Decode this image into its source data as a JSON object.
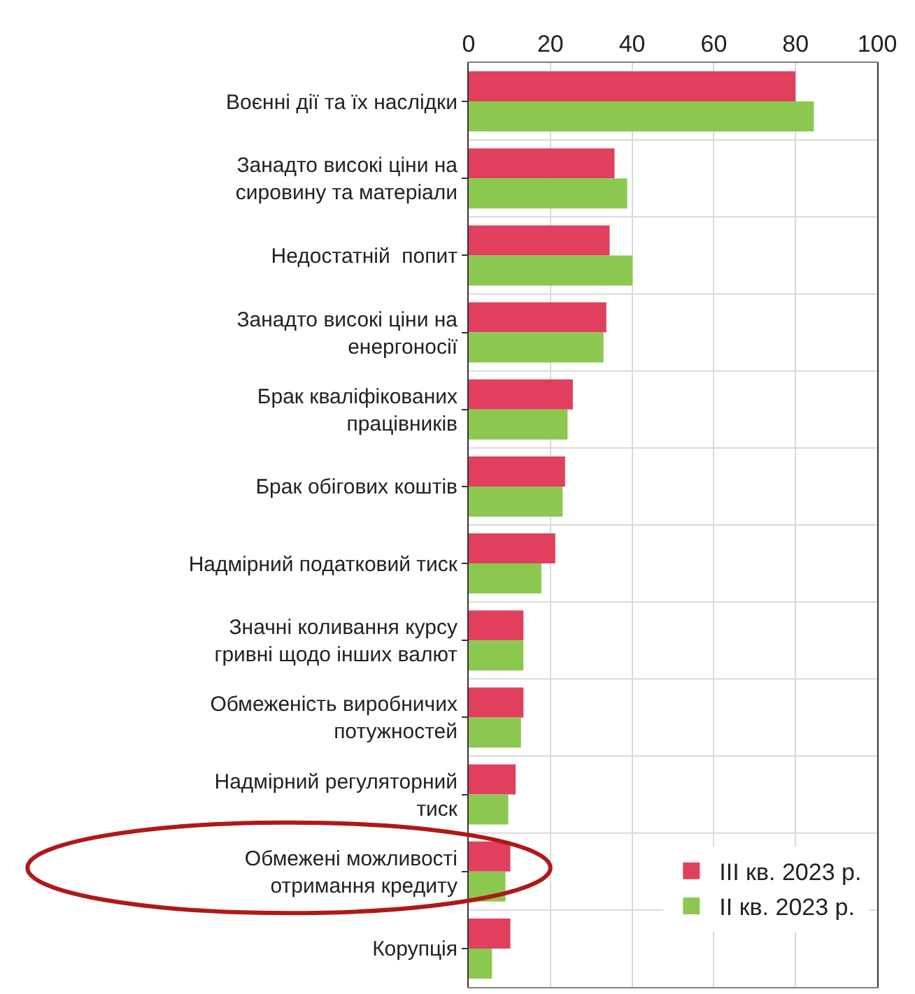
{
  "chart_data": {
    "type": "bar",
    "orientation": "horizontal",
    "categories": [
      "Воєнні дії та їх наслідки",
      "Занадто високі ціни на\nсировину та матеріали",
      "Недостатній  попит",
      "Занадто високі ціни на\nенергоносії",
      "Брак кваліфікованих\nпрацівників",
      "Брак обігових коштів",
      "Надмірний податковий тиск",
      "Значні коливання курсу\nгривні щодо інших валют",
      "Обмеженість виробничих\nпотужностей",
      "Надмірний регуляторний\nтиск",
      "Обмежені можливості\nотримання кредиту",
      "Корупція"
    ],
    "series": [
      {
        "name": "III кв. 2023 р.",
        "color": "#e0405e",
        "values": [
          80,
          35.7,
          34.5,
          33.7,
          25.5,
          23.6,
          21.2,
          13.4,
          13.4,
          11.5,
          10.2,
          10.2
        ]
      },
      {
        "name": "II кв. 2023 р.",
        "color": "#8cc850",
        "values": [
          84.5,
          38.8,
          40.1,
          33,
          24.2,
          23,
          17.8,
          13.4,
          12.8,
          9.7,
          9,
          5.7
        ]
      }
    ],
    "xlim": [
      0,
      100
    ],
    "xticks": [
      0,
      20,
      40,
      60,
      80,
      100
    ],
    "grid": true,
    "legend": "bottom right"
  }
}
